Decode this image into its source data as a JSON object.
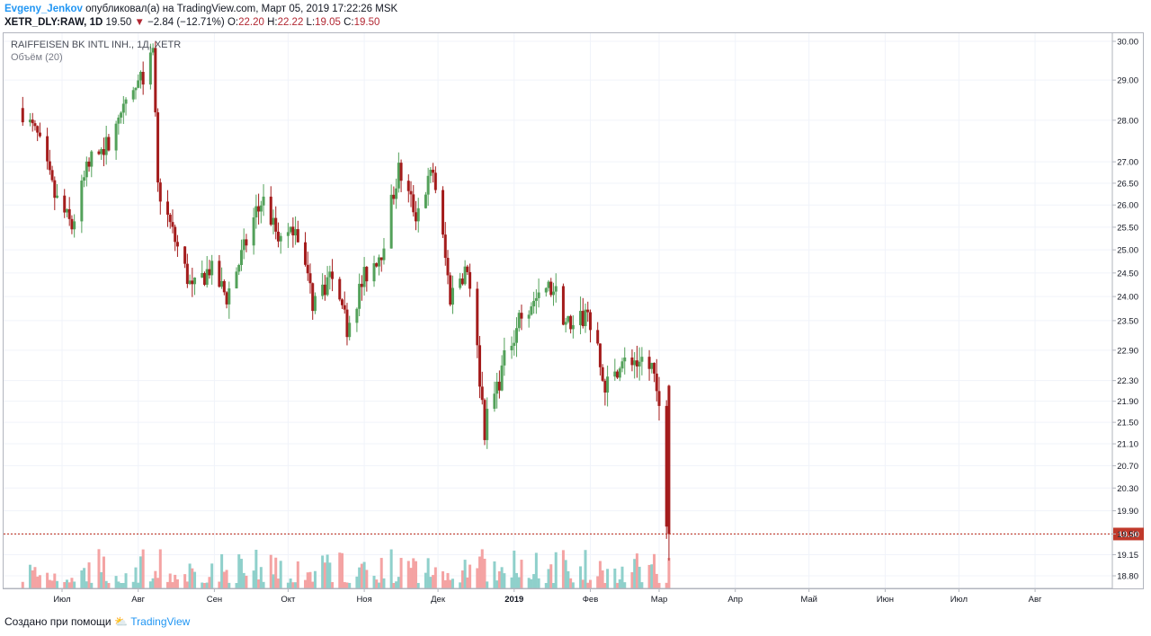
{
  "header": {
    "author": "Evgeny_Jenkov",
    "published": "опубликовал(а) на TradingView.com, Март 05, 2019 17:22:26 MSK",
    "symbol": "XETR_DLY:RAW, 1D",
    "last": "19.50",
    "change": "−2.84 (−12.71%)",
    "o_label": "O:",
    "o": "22.20",
    "h_label": "H:",
    "h": "22.22",
    "l_label": "L:",
    "l": "19.05",
    "c_label": "C:",
    "c": "19.50"
  },
  "legend": {
    "title": "RAIFFEISEN BK INTL INH., 1Д, XETR",
    "volume": "Объём (20)"
  },
  "footer": {
    "created": "Создано при помощи",
    "brand": "TradingView"
  },
  "colors": {
    "up": "#53a15a",
    "down": "#a41c1c",
    "vol_up": "#8fd0cb",
    "vol_down": "#f4a3a3",
    "price_line": "#c0392b"
  },
  "chart_data": {
    "type": "candlestick",
    "title": "RAIFFEISEN BK INTL INH., 1Д, XETR",
    "y_ticks": [
      "30.00",
      "29.00",
      "28.00",
      "27.00",
      "26.50",
      "26.00",
      "25.50",
      "25.00",
      "24.50",
      "24.00",
      "23.50",
      "22.90",
      "22.30",
      "21.90",
      "21.50",
      "21.10",
      "20.70",
      "20.30",
      "19.90",
      "19.50",
      "19.15",
      "18.80"
    ],
    "x_ticks": [
      "Июл",
      "Авг",
      "Сен",
      "Окт",
      "Ноя",
      "Дек",
      "2019",
      "Фев",
      "Мар",
      "Апр",
      "Май",
      "Июн",
      "Июл",
      "Авг"
    ],
    "last_price": 19.5,
    "close_path": [
      {
        "date": "2018-06-15",
        "close": 28.3
      },
      {
        "date": "2018-06-22",
        "close": 27.6
      },
      {
        "date": "2018-06-29",
        "close": 26.2
      },
      {
        "date": "2018-07-06",
        "close": 25.5
      },
      {
        "date": "2018-07-13",
        "close": 27.0
      },
      {
        "date": "2018-07-20",
        "close": 27.4
      },
      {
        "date": "2018-07-27",
        "close": 28.2
      },
      {
        "date": "2018-08-03",
        "close": 29.0
      },
      {
        "date": "2018-08-08",
        "close": 29.6
      },
      {
        "date": "2018-08-10",
        "close": 26.4
      },
      {
        "date": "2018-08-17",
        "close": 25.2
      },
      {
        "date": "2018-08-24",
        "close": 24.1
      },
      {
        "date": "2018-08-31",
        "close": 24.6
      },
      {
        "date": "2018-09-07",
        "close": 24.0
      },
      {
        "date": "2018-09-14",
        "close": 25.0
      },
      {
        "date": "2018-09-21",
        "close": 26.2
      },
      {
        "date": "2018-09-28",
        "close": 25.3
      },
      {
        "date": "2018-10-05",
        "close": 25.6
      },
      {
        "date": "2018-10-12",
        "close": 23.9
      },
      {
        "date": "2018-10-19",
        "close": 24.4
      },
      {
        "date": "2018-10-26",
        "close": 23.4
      },
      {
        "date": "2018-11-02",
        "close": 24.4
      },
      {
        "date": "2018-11-09",
        "close": 25.0
      },
      {
        "date": "2018-11-16",
        "close": 26.8
      },
      {
        "date": "2018-11-23",
        "close": 25.8
      },
      {
        "date": "2018-11-30",
        "close": 26.8
      },
      {
        "date": "2018-12-07",
        "close": 24.0
      },
      {
        "date": "2018-12-14",
        "close": 24.8
      },
      {
        "date": "2018-12-21",
        "close": 21.4
      },
      {
        "date": "2018-12-28",
        "close": 22.5
      },
      {
        "date": "2019-01-04",
        "close": 23.6
      },
      {
        "date": "2019-01-11",
        "close": 24.0
      },
      {
        "date": "2019-01-18",
        "close": 24.2
      },
      {
        "date": "2019-01-25",
        "close": 23.2
      },
      {
        "date": "2019-02-01",
        "close": 23.7
      },
      {
        "date": "2019-02-08",
        "close": 22.1
      },
      {
        "date": "2019-02-15",
        "close": 22.6
      },
      {
        "date": "2019-02-22",
        "close": 22.8
      },
      {
        "date": "2019-03-01",
        "close": 22.34
      },
      {
        "date": "2019-03-05",
        "close": 19.5
      }
    ],
    "last_candle": {
      "date": "2019-03-05",
      "open": 22.2,
      "high": 22.22,
      "low": 19.05,
      "close": 19.5
    }
  }
}
